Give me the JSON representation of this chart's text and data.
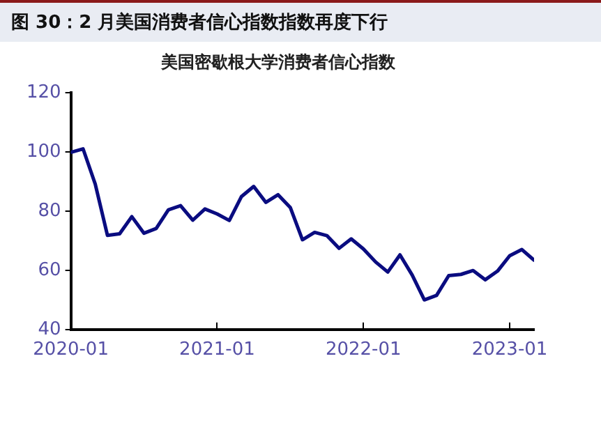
{
  "chart_data": {
    "type": "line",
    "title": "图 30：2 月美国消费者信心指数指数再度下行",
    "subtitle": "美国密歇根大学消费者信心指数",
    "x": [
      "2020-01",
      "2020-02",
      "2020-03",
      "2020-04",
      "2020-05",
      "2020-06",
      "2020-07",
      "2020-08",
      "2020-09",
      "2020-10",
      "2020-11",
      "2020-12",
      "2021-01",
      "2021-02",
      "2021-03",
      "2021-04",
      "2021-05",
      "2021-06",
      "2021-07",
      "2021-08",
      "2021-09",
      "2021-10",
      "2021-11",
      "2021-12",
      "2022-01",
      "2022-02",
      "2022-03",
      "2022-04",
      "2022-05",
      "2022-06",
      "2022-07",
      "2022-08",
      "2022-09",
      "2022-10",
      "2022-11",
      "2022-12",
      "2023-01",
      "2023-02",
      "2023-03"
    ],
    "series": [
      {
        "color": "#0a0c80",
        "values": [
          99.8,
          101.0,
          89.1,
          71.8,
          72.3,
          78.1,
          72.5,
          74.1,
          80.4,
          81.8,
          76.9,
          80.7,
          79.0,
          76.8,
          84.9,
          88.3,
          82.9,
          85.5,
          81.2,
          70.3,
          72.8,
          71.7,
          67.4,
          70.6,
          67.2,
          62.8,
          59.4,
          65.2,
          58.4,
          50.0,
          51.5,
          58.2,
          58.6,
          59.9,
          56.8,
          59.7,
          64.9,
          67.0,
          63.4
        ]
      }
    ],
    "xlim": [
      "2020-01",
      "2023-03"
    ],
    "xticks": [
      "2020-01",
      "2021-01",
      "2022-01",
      "2023-01"
    ],
    "ylim": [
      40,
      120
    ],
    "yticks": [
      40,
      60,
      80,
      100,
      120
    ],
    "grid": false,
    "legend": false,
    "marker": "none",
    "line_style": "solid"
  }
}
